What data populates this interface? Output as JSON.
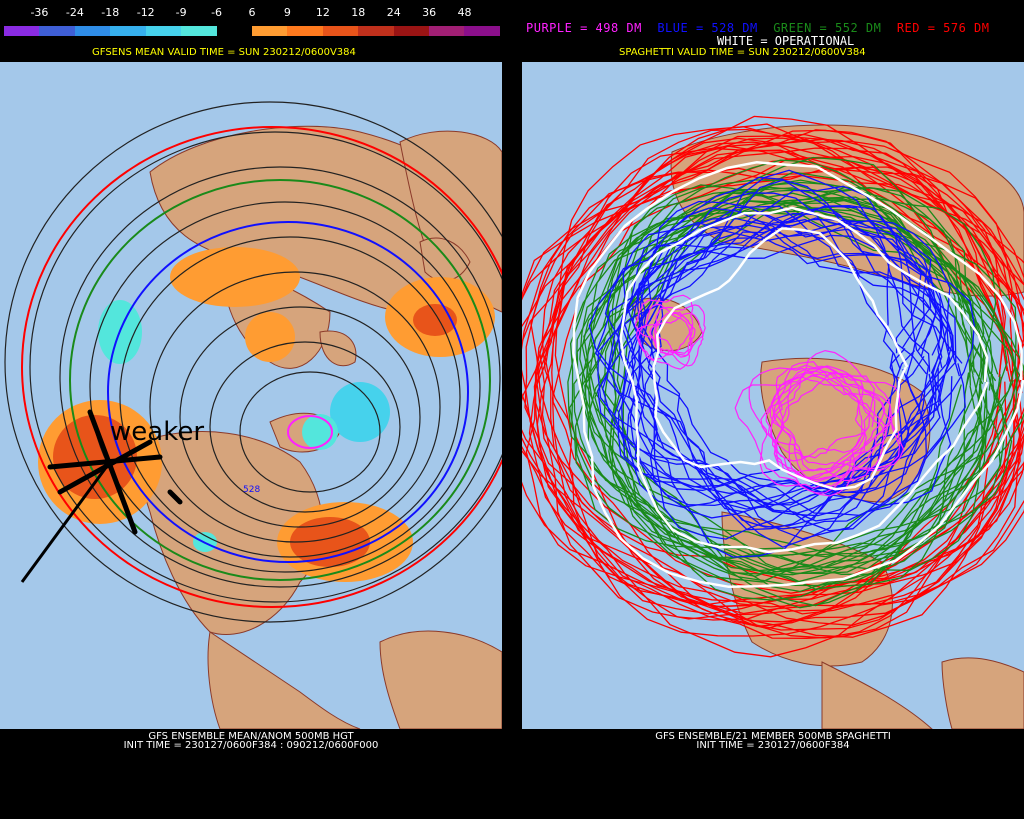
{
  "colorbar": {
    "labels": [
      "-36",
      "-24",
      "-18",
      "-12",
      "-9",
      "-6",
      "6",
      "9",
      "12",
      "18",
      "24",
      "36",
      "48"
    ],
    "colors": [
      "#8a2be2",
      "#3f5fd6",
      "#2f8de8",
      "#36b0ee",
      "#46d2ec",
      "#53e6dc",
      "#000000",
      "#ff9c32",
      "#ff7a1e",
      "#e8541a",
      "#c0301c",
      "#9a1414",
      "#a11f74",
      "#8b0f8b"
    ]
  },
  "left_panel": {
    "valid_title": "GFSENS MEAN VALID TIME = SUN 230212/0600V384",
    "annotation": "weaker",
    "contour_label": "528",
    "bottom_title_1": "GFS ENSEMBLE MEAN/ANOM 500MB HGT",
    "bottom_title_2": "INIT TIME = 230127/0600F384 : 090212/0600F000"
  },
  "right_panel": {
    "legend": {
      "purple": "PURPLE = 498 DM",
      "blue": "BLUE = 528 DM",
      "green": "GREEN = 552 DM",
      "red": "RED = 576 DM",
      "white": "WHITE = OPERATIONAL"
    },
    "valid_title": "SPAGHETTI VALID TIME = SUN 230212/0600V384",
    "bottom_title_1": "GFS ENSEMBLE/21 MEMBER 500MB SPAGHETTI",
    "bottom_title_2": "INIT TIME = 230127/0600F384"
  },
  "colors": {
    "ocean": "#a4c8ea",
    "land": "#d6a47c",
    "red": "#ff0000",
    "green": "#1a8a1a",
    "blue": "#1010ff",
    "purple": "#ff22ff",
    "white": "#ffffff"
  }
}
